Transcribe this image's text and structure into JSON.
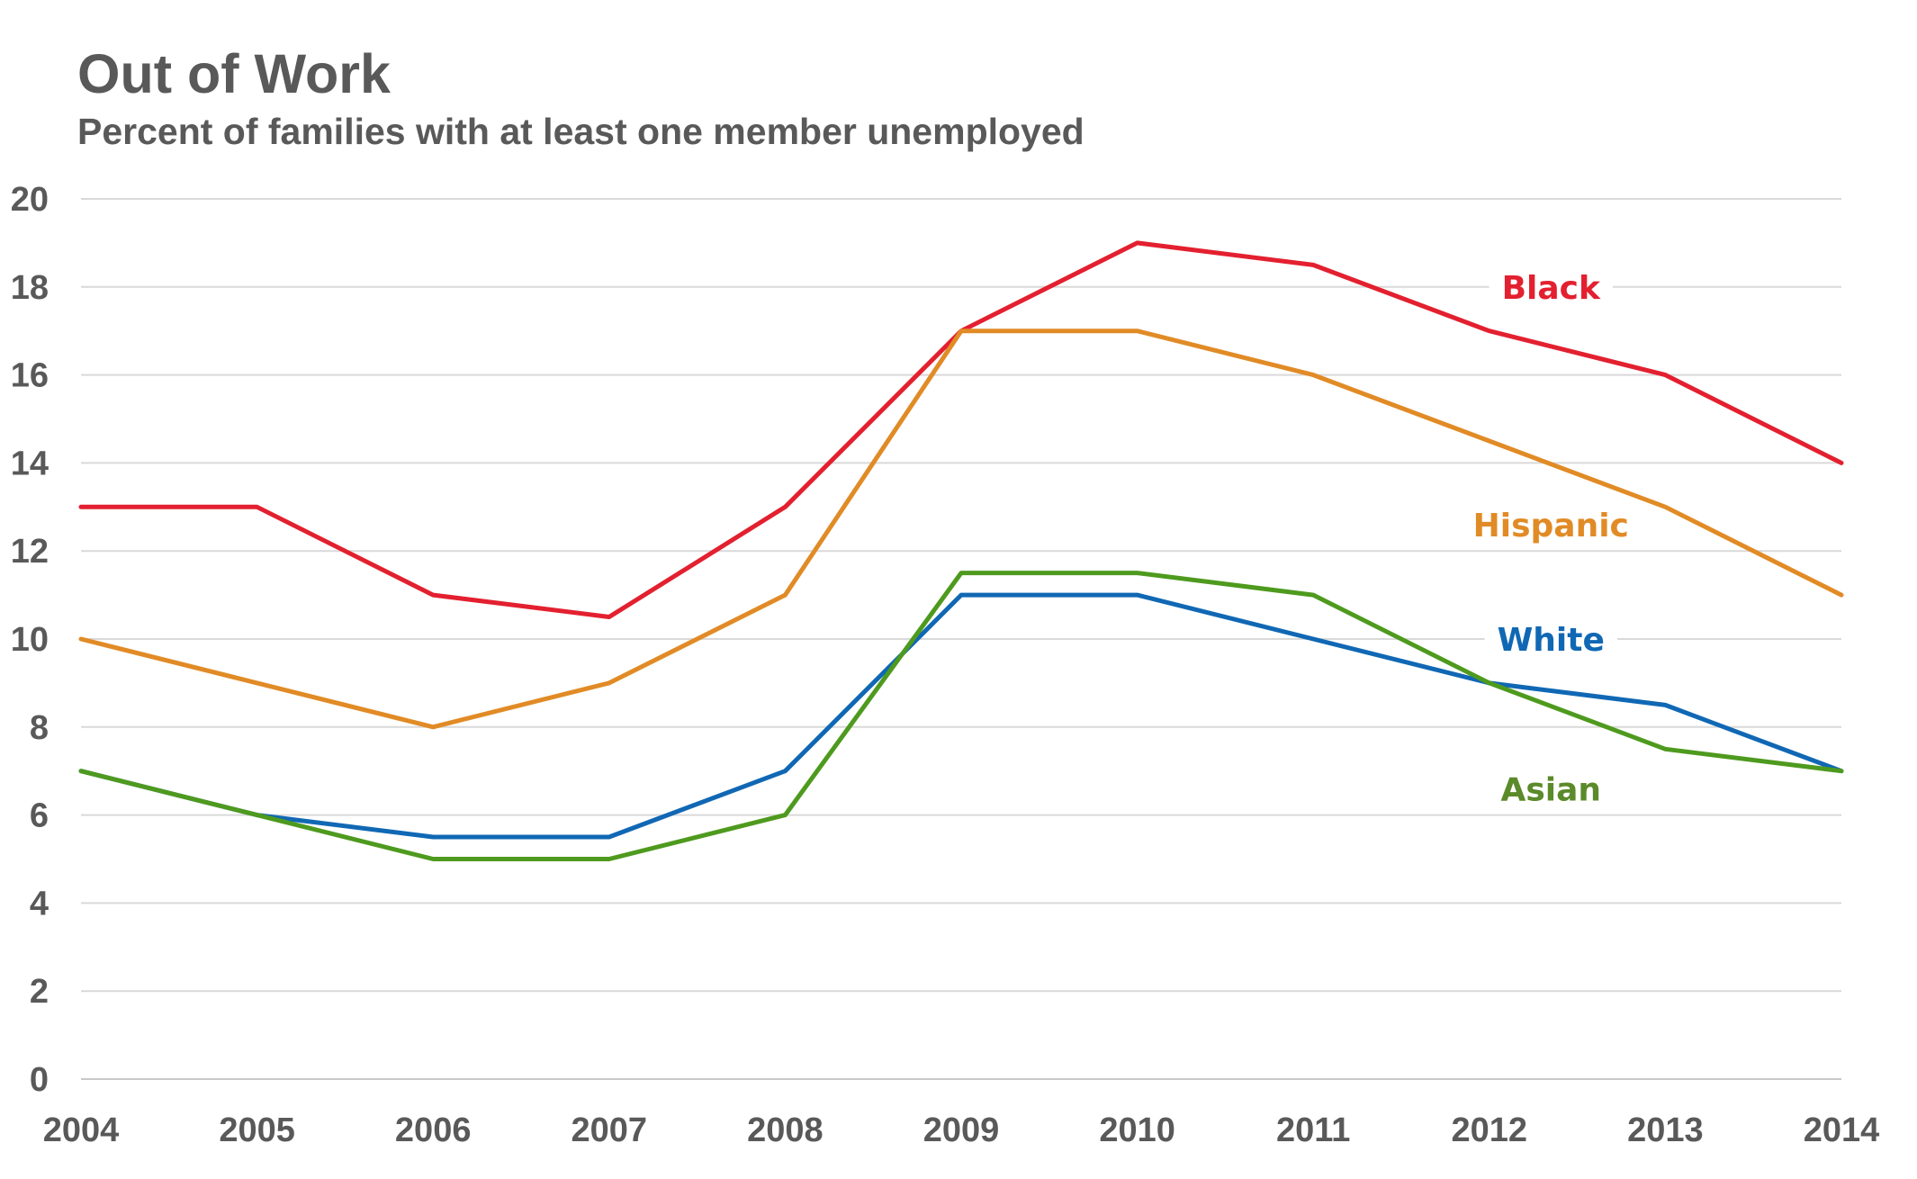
{
  "chart_data": {
    "type": "line",
    "title": "Out of Work",
    "subtitle": "Percent of families with at least one member unemployed",
    "xlabel": "",
    "ylabel": "",
    "x": [
      "2004",
      "2005",
      "2006",
      "2007",
      "2008",
      "2009",
      "2010",
      "2011",
      "2012",
      "2013",
      "2014"
    ],
    "ylim": [
      0,
      20
    ],
    "yticks": [
      0,
      2,
      4,
      6,
      8,
      10,
      12,
      14,
      16,
      18,
      20
    ],
    "grid": true,
    "legend": "inline-labels-right",
    "series": [
      {
        "name": "Black",
        "color": "#e3202f",
        "values": [
          13,
          13,
          11,
          10.5,
          13,
          17,
          19,
          18.5,
          17,
          16,
          14
        ]
      },
      {
        "name": "Hispanic",
        "color": "#e18b26",
        "values": [
          10,
          9,
          8,
          9,
          11,
          17,
          17,
          16,
          14.5,
          13,
          11
        ]
      },
      {
        "name": "White",
        "color": "#1068b4",
        "values": [
          7,
          6,
          5.5,
          5.5,
          7,
          11,
          11,
          10,
          9,
          8.5,
          7
        ]
      },
      {
        "name": "Asian",
        "color": "#4e9a1e",
        "label_color": "#5b8a2a",
        "values": [
          7,
          6,
          5,
          5,
          6,
          11.5,
          11.5,
          11,
          9,
          7.5,
          7
        ]
      }
    ]
  }
}
